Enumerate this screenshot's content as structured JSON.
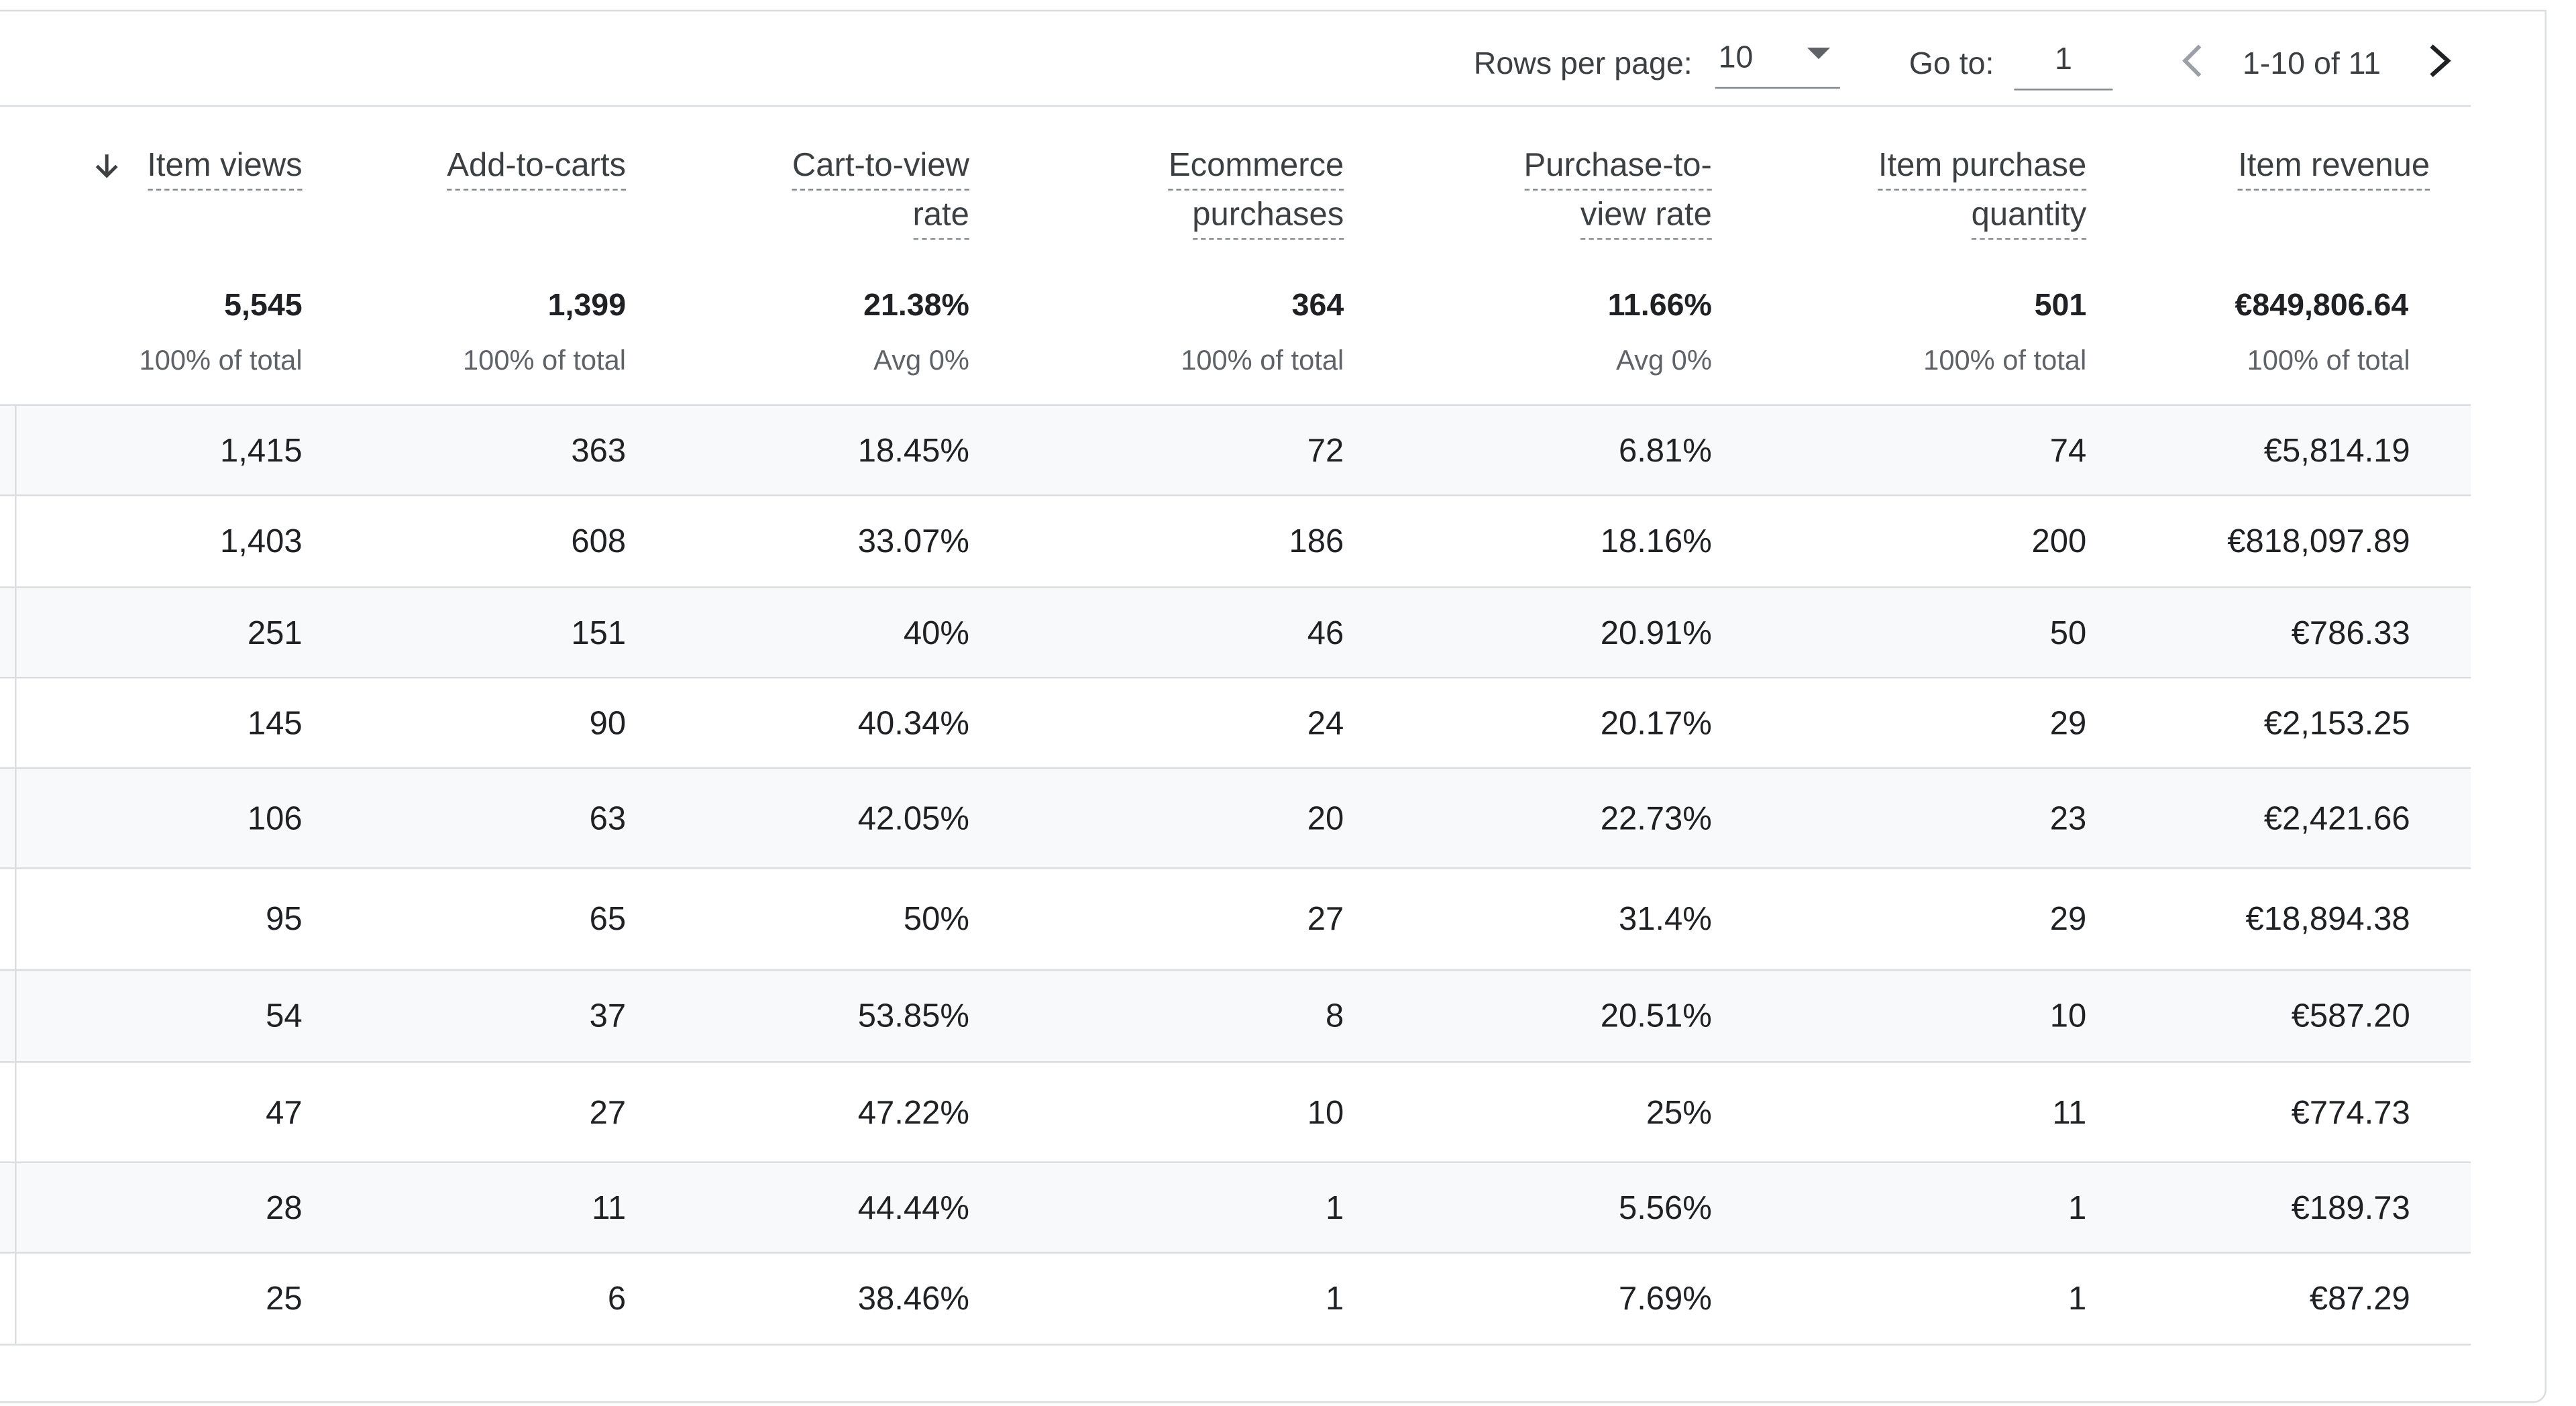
{
  "pagination": {
    "rows_per_page_label": "Rows per page:",
    "rows_per_page_value": "10",
    "go_to_label": "Go to:",
    "go_to_value": "1",
    "range_text": "1-10 of 11"
  },
  "table": {
    "columns": [
      {
        "key": "item_views",
        "lines": [
          "Item views"
        ],
        "sorted": "descending"
      },
      {
        "key": "add_to_carts",
        "lines": [
          "Add-to-carts"
        ]
      },
      {
        "key": "cart_to_view_rate",
        "lines": [
          "Cart-to-view",
          "rate"
        ]
      },
      {
        "key": "ecommerce_purchases",
        "lines": [
          "Ecommerce",
          "purchases"
        ]
      },
      {
        "key": "purchase_to_view_rate",
        "lines": [
          "Purchase-to-",
          "view rate"
        ]
      },
      {
        "key": "item_purchase_quantity",
        "lines": [
          "Item purchase",
          "quantity"
        ]
      },
      {
        "key": "item_revenue",
        "lines": [
          "Item revenue"
        ]
      }
    ],
    "totals": [
      {
        "value": "5,545",
        "sub": "100% of total"
      },
      {
        "value": "1,399",
        "sub": "100% of total"
      },
      {
        "value": "21.38%",
        "sub": "Avg 0%"
      },
      {
        "value": "364",
        "sub": "100% of total"
      },
      {
        "value": "11.66%",
        "sub": "Avg 0%"
      },
      {
        "value": "501",
        "sub": "100% of total"
      },
      {
        "value": "€849,806.64",
        "sub": "100% of total"
      }
    ],
    "rows": [
      [
        "1,415",
        "363",
        "18.45%",
        "72",
        "6.81%",
        "74",
        "€5,814.19"
      ],
      [
        "1,403",
        "608",
        "33.07%",
        "186",
        "18.16%",
        "200",
        "€818,097.89"
      ],
      [
        "251",
        "151",
        "40%",
        "46",
        "20.91%",
        "50",
        "€786.33"
      ],
      [
        "145",
        "90",
        "40.34%",
        "24",
        "20.17%",
        "29",
        "€2,153.25"
      ],
      [
        "106",
        "63",
        "42.05%",
        "20",
        "22.73%",
        "23",
        "€2,421.66"
      ],
      [
        "95",
        "65",
        "50%",
        "27",
        "31.4%",
        "29",
        "€18,894.38"
      ],
      [
        "54",
        "37",
        "53.85%",
        "8",
        "20.51%",
        "10",
        "€587.20"
      ],
      [
        "47",
        "27",
        "47.22%",
        "10",
        "25%",
        "11",
        "€774.73"
      ],
      [
        "28",
        "11",
        "44.44%",
        "1",
        "5.56%",
        "1",
        "€189.73"
      ],
      [
        "25",
        "6",
        "38.46%",
        "1",
        "7.69%",
        "1",
        "€87.29"
      ]
    ]
  }
}
